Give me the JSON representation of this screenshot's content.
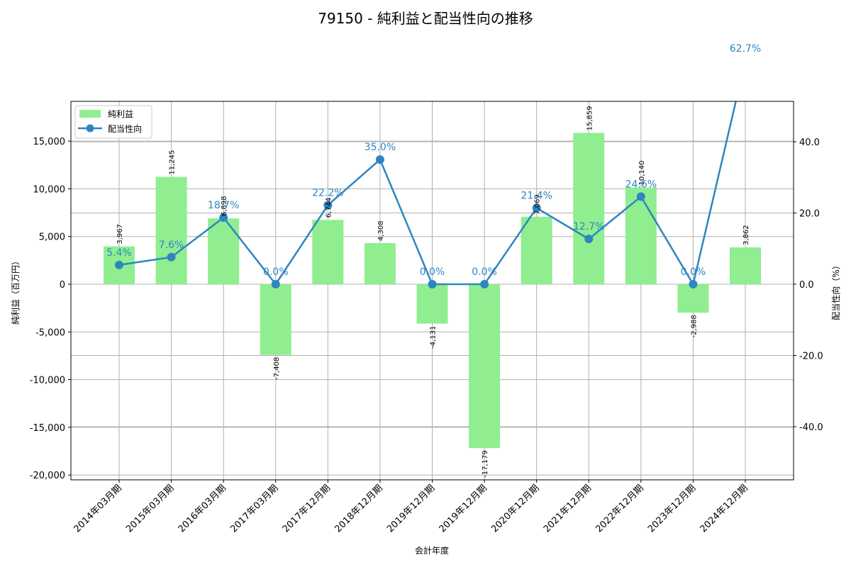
{
  "title": "79150 - 純利益と配当性向の推移",
  "xlabel": "会計年度",
  "ylabel_left": "純利益（百万円）",
  "ylabel_right": "配当性向（%）",
  "legend": [
    {
      "label": "純利益",
      "type": "bar",
      "color": "#90ee90"
    },
    {
      "label": "配当性向",
      "type": "line",
      "color": "#2e86c1"
    }
  ],
  "left_ticks": [
    "15,000",
    "10,000",
    "5,000",
    "0",
    "-5,000",
    "-10,000",
    "-15,000",
    "-20,000"
  ],
  "right_ticks": [
    "40.0",
    "20.0",
    "0.0",
    "-20.0",
    "-40.0"
  ],
  "colors": {
    "bar": "#90ee90",
    "line": "#2e86c1",
    "grid": "#b0b0b0",
    "axis": "#000000"
  },
  "chart_data": {
    "type": "bar+line",
    "title": "79150 - 純利益と配当性向の推移",
    "xlabel": "会計年度",
    "ylabel": "純利益（百万円）",
    "y2label": "配当性向（%）",
    "categories": [
      "2014年03月期",
      "2015年03月期",
      "2016年03月期",
      "2017年03月期",
      "2017年12月期",
      "2018年12月期",
      "2019年12月期",
      "2019年12月期",
      "2020年12月期",
      "2021年12月期",
      "2022年12月期",
      "2023年12月期",
      "2024年12月期"
    ],
    "series": [
      {
        "name": "純利益",
        "type": "bar",
        "axis": "left",
        "values": [
          3967,
          11245,
          6898,
          -7408,
          6744,
          4308,
          -4131,
          -17179,
          7069,
          15859,
          10140,
          -2988,
          3862
        ],
        "labels": [
          "3,967",
          "11,245",
          "6,898",
          "-7,408",
          "6,744",
          "4,308",
          "-4,131",
          "-17,179",
          "7,069",
          "15,859",
          "10,140",
          "-2,988",
          "3,862"
        ]
      },
      {
        "name": "配当性向",
        "type": "line",
        "axis": "right",
        "values": [
          5.4,
          7.6,
          18.7,
          0.0,
          22.2,
          35.0,
          0.0,
          0.0,
          21.4,
          12.7,
          24.6,
          0.0,
          62.7
        ],
        "labels": [
          "5.4%",
          "7.6%",
          "18.7%",
          "0.0%",
          "22.2%",
          "35.0%",
          "0.0%",
          "0.0%",
          "21.4%",
          "12.7%",
          "24.6%",
          "0.0%",
          "62.7%"
        ]
      }
    ],
    "ylim": [
      -20500,
      19170
    ],
    "y2lim": [
      -54.9,
      51.3
    ],
    "yticks": [
      -20000,
      -15000,
      -10000,
      -5000,
      0,
      5000,
      10000,
      15000
    ],
    "y2ticks": [
      -40,
      -20,
      0,
      20,
      40
    ],
    "grid": true,
    "legend_position": "upper left"
  }
}
